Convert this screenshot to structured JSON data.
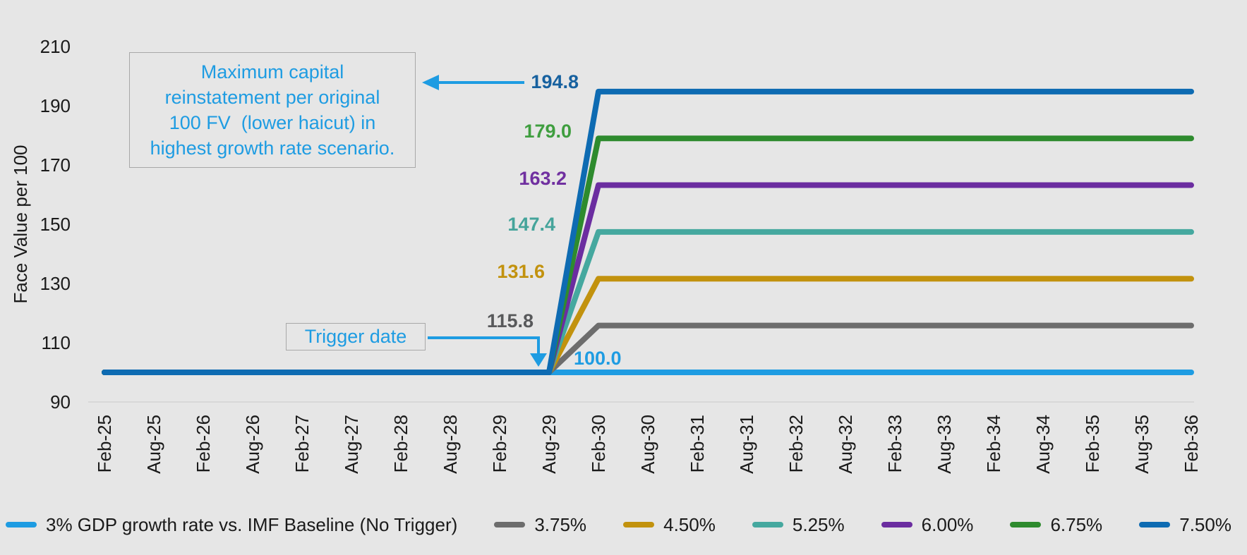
{
  "chart_data": {
    "type": "line",
    "title": "",
    "ylabel": "Face Value per 100",
    "xlabel": "",
    "ylim": [
      90,
      215
    ],
    "y_ticks": [
      210,
      190,
      170,
      150,
      130,
      110,
      90
    ],
    "grid": "bottom-baseline-only",
    "legend_position": "bottom",
    "categories": [
      "Feb-25",
      "Aug-25",
      "Feb-26",
      "Aug-26",
      "Feb-27",
      "Aug-27",
      "Feb-28",
      "Aug-28",
      "Feb-29",
      "Aug-29",
      "Feb-30",
      "Aug-30",
      "Feb-31",
      "Aug-31",
      "Feb-32",
      "Aug-32",
      "Feb-33",
      "Aug-33",
      "Feb-34",
      "Aug-34",
      "Feb-35",
      "Aug-35",
      "Feb-36"
    ],
    "trigger_category": "Aug-29",
    "plateau_category": "Feb-30",
    "series": [
      {
        "name": "3% GDP growth rate vs. IMF Baseline (No Trigger)",
        "color": "#1e9ce2",
        "label_color": "#1e9ce2",
        "start_value": 100.0,
        "end_value": 100.0,
        "data_label": "100.0"
      },
      {
        "name": "3.75%",
        "color": "#6d6d6d",
        "label_color": "#58595b",
        "start_value": 100.0,
        "end_value": 115.8,
        "data_label": "115.8"
      },
      {
        "name": "4.50%",
        "color": "#c2920e",
        "label_color": "#c2920e",
        "start_value": 100.0,
        "end_value": 131.6,
        "data_label": "131.6"
      },
      {
        "name": "5.25%",
        "color": "#45a89f",
        "label_color": "#45a49b",
        "start_value": 100.0,
        "end_value": 147.4,
        "data_label": "147.4"
      },
      {
        "name": "6.00%",
        "color": "#6b2da0",
        "label_color": "#7030a0",
        "start_value": 100.0,
        "end_value": 163.2,
        "data_label": "163.2"
      },
      {
        "name": "6.75%",
        "color": "#2e8b2e",
        "label_color": "#3f9e3f",
        "start_value": 100.0,
        "end_value": 179.0,
        "data_label": "179.0"
      },
      {
        "name": "7.50%",
        "color": "#0e6bb2",
        "label_color": "#17619f",
        "start_value": 100.0,
        "end_value": 194.8,
        "data_label": "194.8"
      }
    ]
  },
  "annotation": {
    "lines": [
      "Maximum capital",
      "reinstatement per original",
      "100 FV  (lower haicut) in",
      "highest growth rate scenario."
    ],
    "text_color": "#1e9ce2",
    "arrow_color": "#1e9ce2"
  },
  "trigger": {
    "label": "Trigger date",
    "text_color": "#1e9ce2",
    "arrow_color": "#1e9ce2"
  },
  "colors": {
    "background": "#e6e6e6",
    "axis_text": "#1a1a1a",
    "gridline": "#d4d4d4",
    "box_border": "#a8a8a8"
  }
}
